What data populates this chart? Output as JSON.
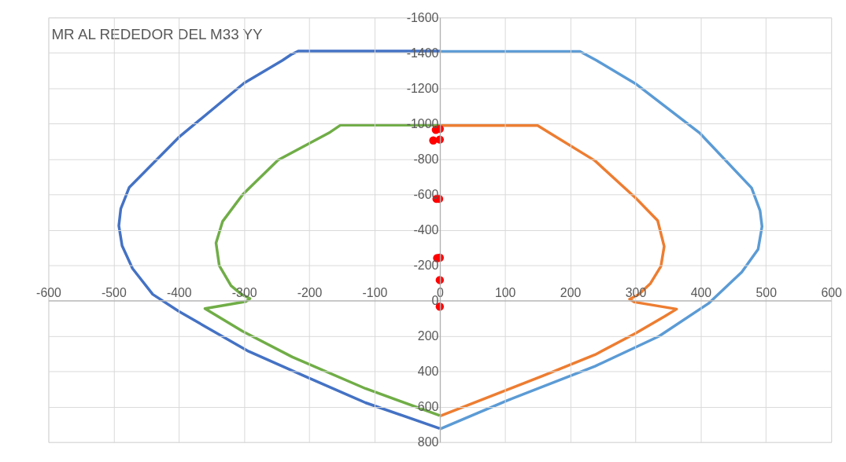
{
  "chart_data": {
    "type": "line",
    "title": "MR AL REDEDOR DEL M33 YY",
    "xlim": [
      -600,
      600
    ],
    "xticks": [
      -600,
      -500,
      -400,
      -300,
      -200,
      -100,
      0,
      100,
      200,
      300,
      400,
      500,
      600
    ],
    "ylim": [
      800,
      -1600
    ],
    "yticks": [
      -1600,
      -1400,
      -1200,
      -1000,
      -800,
      -600,
      -400,
      -200,
      0,
      200,
      400,
      600,
      800
    ],
    "grid": true,
    "marker": "none",
    "line_style": "solid",
    "series": [
      {
        "color": "#4472c4",
        "x": [
          0,
          -217,
          -228,
          -241,
          -300,
          -400,
          -476,
          -489,
          -492,
          -487,
          -471,
          -440,
          -400,
          -293,
          -204,
          -114,
          0
        ],
        "values": [
          -1410,
          -1410,
          -1390,
          -1358,
          -1229,
          -923,
          -640,
          -519,
          -423,
          -310,
          -181,
          -35,
          61,
          287,
          432,
          577,
          723
        ]
      },
      {
        "color": "#5b9bd5",
        "x": [
          0,
          215,
          240,
          300,
          399,
          478,
          491,
          494,
          488,
          463,
          412,
          336,
          238,
          103,
          0
        ],
        "values": [
          -1408,
          -1408,
          -1358,
          -1226,
          -945,
          -637,
          -508,
          -419,
          -290,
          -161,
          16,
          202,
          371,
          565,
          726
        ]
      },
      {
        "color": "#70ad47",
        "x": [
          0,
          -152,
          -168,
          -248,
          -302,
          -333,
          -343,
          -338,
          -320,
          -304,
          -291,
          -297,
          -360,
          -342,
          -302,
          -226,
          -114,
          0
        ],
        "values": [
          -992,
          -992,
          -952,
          -794,
          -600,
          -447,
          -326,
          -197,
          -84,
          -35,
          -11,
          5,
          45,
          85,
          174,
          319,
          497,
          650
        ]
      },
      {
        "color": "#ed7d31",
        "x": [
          0,
          150,
          168,
          238,
          300,
          334,
          344,
          339,
          323,
          305,
          291,
          298,
          363,
          345,
          300,
          238,
          157,
          0
        ],
        "values": [
          -989,
          -989,
          -948,
          -790,
          -581,
          -452,
          -306,
          -194,
          -97,
          -35,
          -8,
          8,
          48,
          89,
          185,
          306,
          427,
          653
        ]
      },
      {
        "type": "scatter",
        "color": "#ff0000",
        "marker": "circle",
        "x": [
          -6,
          0,
          -10,
          0,
          -5,
          -1,
          -4,
          0,
          0,
          0
        ],
        "values": [
          -965,
          -970,
          -905,
          -910,
          -575,
          -575,
          -240,
          -242,
          -116,
          34
        ]
      }
    ]
  }
}
